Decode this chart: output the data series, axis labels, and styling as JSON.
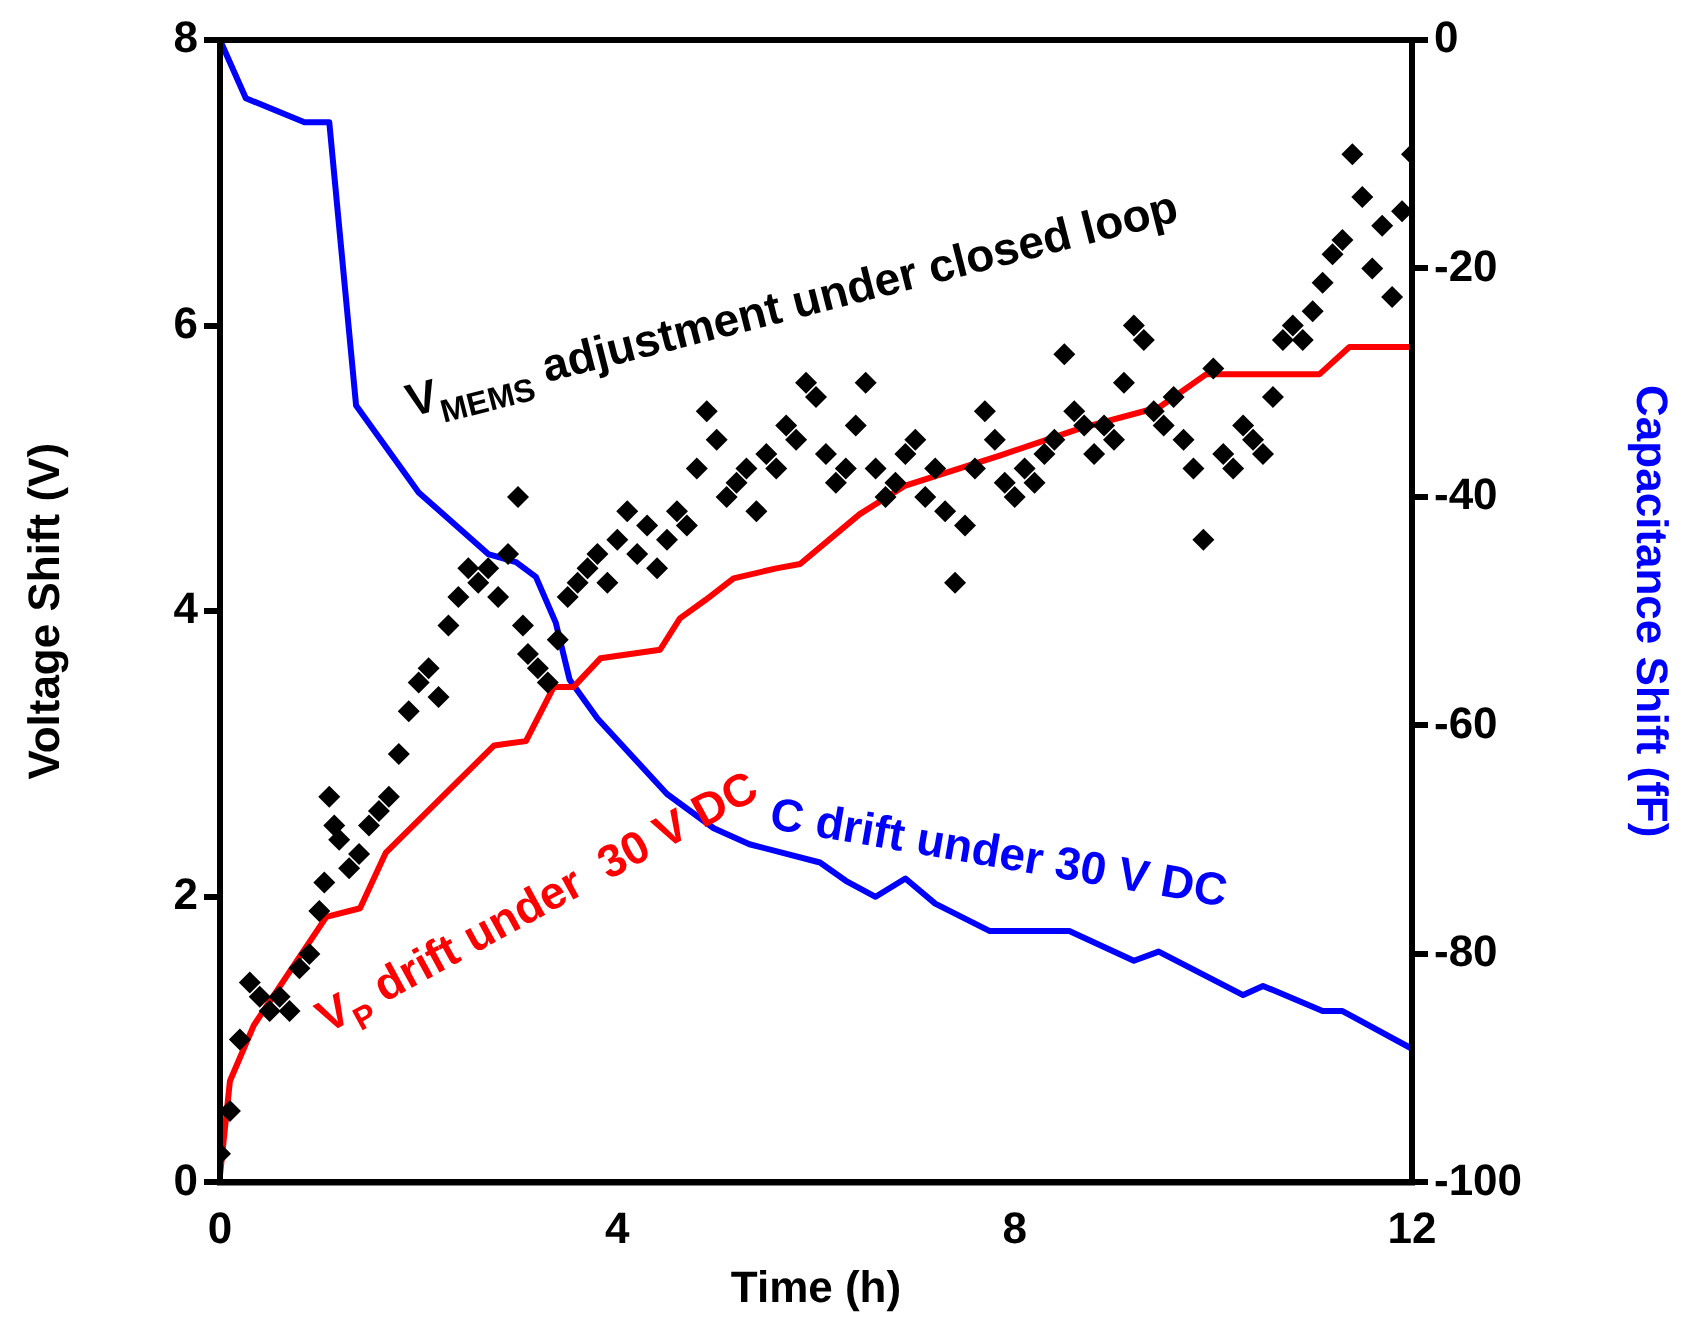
{
  "chart_data": {
    "type": "line",
    "xlabel": "Time (h)",
    "ylabel": "Voltage Shift (V)",
    "y2label": "Capacitance Shift (fF)",
    "xlim": [
      0,
      12
    ],
    "xticks": [
      0,
      4,
      8,
      12
    ],
    "ylim": [
      0,
      8
    ],
    "yticks": [
      0,
      2,
      4,
      6,
      8
    ],
    "y2lim": [
      -100,
      0
    ],
    "y2ticks": [
      -100,
      -80,
      -60,
      -40,
      -20,
      0
    ],
    "grid": false,
    "legend": false,
    "series": [
      {
        "name": "V$_{MEMS}$ adjustment under closed loop",
        "type": "scatter",
        "marker": "diamond",
        "color": "#000000",
        "x": [
          0,
          0.1,
          0.2,
          0.3,
          0.4,
          0.5,
          0.6,
          0.7,
          0.8,
          0.9,
          1.0,
          1.05,
          1.1,
          1.15,
          1.2,
          1.3,
          1.4,
          1.5,
          1.6,
          1.7,
          1.8,
          1.9,
          2.0,
          2.1,
          2.2,
          2.3,
          2.4,
          2.5,
          2.6,
          2.7,
          2.8,
          2.9,
          3.0,
          3.05,
          3.1,
          3.2,
          3.3,
          3.4,
          3.5,
          3.6,
          3.7,
          3.8,
          3.9,
          4.0,
          4.1,
          4.2,
          4.3,
          4.4,
          4.5,
          4.6,
          4.7,
          4.8,
          4.9,
          5.0,
          5.1,
          5.2,
          5.3,
          5.4,
          5.5,
          5.6,
          5.7,
          5.8,
          5.9,
          6.0,
          6.1,
          6.2,
          6.3,
          6.4,
          6.5,
          6.6,
          6.7,
          6.8,
          6.9,
          7.0,
          7.1,
          7.2,
          7.3,
          7.4,
          7.5,
          7.6,
          7.7,
          7.8,
          7.9,
          8.0,
          8.1,
          8.2,
          8.3,
          8.4,
          8.5,
          8.6,
          8.7,
          8.8,
          8.9,
          9.0,
          9.1,
          9.2,
          9.3,
          9.4,
          9.5,
          9.6,
          9.7,
          9.8,
          9.9,
          10.0,
          10.1,
          10.2,
          10.3,
          10.4,
          10.5,
          10.6,
          10.7,
          10.8,
          10.9,
          11.0,
          11.1,
          11.2,
          11.3,
          11.4,
          11.5,
          11.6,
          11.7,
          11.8,
          11.9,
          12.0
        ],
        "values": [
          0.2,
          0.5,
          1.0,
          1.4,
          1.3,
          1.2,
          1.3,
          1.2,
          1.5,
          1.6,
          1.9,
          2.1,
          2.7,
          2.5,
          2.4,
          2.2,
          2.3,
          2.5,
          2.6,
          2.7,
          3.0,
          3.3,
          3.5,
          3.6,
          3.4,
          3.9,
          4.1,
          4.3,
          4.2,
          4.3,
          4.1,
          4.4,
          4.8,
          3.9,
          3.7,
          3.6,
          3.5,
          3.8,
          4.1,
          4.2,
          4.3,
          4.4,
          4.2,
          4.5,
          4.7,
          4.4,
          4.6,
          4.3,
          4.5,
          4.7,
          4.6,
          5.0,
          5.4,
          5.2,
          4.8,
          4.9,
          5.0,
          4.7,
          5.1,
          5.0,
          5.3,
          5.2,
          5.6,
          5.5,
          5.1,
          4.9,
          5.0,
          5.3,
          5.6,
          5.0,
          4.8,
          4.9,
          5.1,
          5.2,
          4.8,
          5.0,
          4.7,
          4.2,
          4.6,
          5.0,
          5.4,
          5.2,
          4.9,
          4.8,
          5.0,
          4.9,
          5.1,
          5.2,
          5.8,
          5.4,
          5.3,
          5.1,
          5.3,
          5.2,
          5.6,
          6.0,
          5.9,
          5.4,
          5.3,
          5.5,
          5.2,
          5.0,
          4.5,
          5.7,
          5.1,
          5.0,
          5.3,
          5.2,
          5.1,
          5.5,
          5.9,
          6.0,
          5.9,
          6.1,
          6.3,
          6.5,
          6.6,
          7.2,
          6.9,
          6.4,
          6.7,
          6.2,
          6.8,
          7.2
        ]
      },
      {
        "name": "V$_{P}$ drift under  30 V DC",
        "type": "line",
        "marker": "none",
        "color": "#ff0000",
        "x": [
          0,
          0.1,
          0.34,
          1.07,
          1.41,
          1.67,
          2.76,
          3.08,
          3.36,
          3.56,
          3.83,
          4.43,
          4.63,
          4.89,
          5.17,
          5.6,
          5.84,
          6.44,
          6.9,
          7.85,
          8.66,
          9.46,
          9.93,
          11.07,
          11.37,
          12
        ],
        "values": [
          0.05,
          0.71,
          1.1,
          1.86,
          1.92,
          2.31,
          3.06,
          3.09,
          3.47,
          3.47,
          3.67,
          3.73,
          3.95,
          4.08,
          4.23,
          4.3,
          4.33,
          4.68,
          4.88,
          5.09,
          5.28,
          5.43,
          5.66,
          5.66,
          5.85,
          5.85
        ]
      },
      {
        "name": "C drift under 30 V DC",
        "type": "line",
        "axis": "y2",
        "marker": "none",
        "color": "#0000ff",
        "x": [
          0,
          0.26,
          0.85,
          1.1,
          1.37,
          2.0,
          2.7,
          2.98,
          3.18,
          3.38,
          3.52,
          3.8,
          4.5,
          4.97,
          5.33,
          6.04,
          6.3,
          6.6,
          6.9,
          7.2,
          7.75,
          8.55,
          9.2,
          9.45,
          10.3,
          10.5,
          11.1,
          11.3,
          12
        ],
        "values": [
          0,
          -5.1,
          -7.2,
          -7.2,
          -32,
          -39.6,
          -45,
          -45.7,
          -47,
          -51,
          -56,
          -59.4,
          -66,
          -69,
          -70.4,
          -72,
          -73.6,
          -75,
          -73.4,
          -75.6,
          -78,
          -78,
          -80.6,
          -79.8,
          -83.6,
          -82.8,
          -85,
          -85,
          -88.3
        ]
      }
    ]
  }
}
